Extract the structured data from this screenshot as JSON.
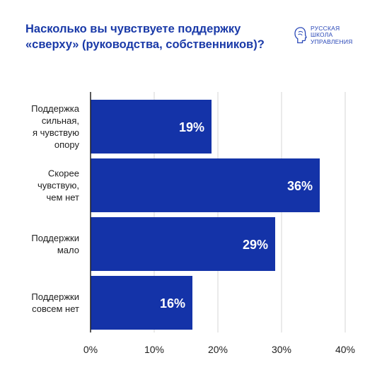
{
  "title_lines": [
    "Насколько вы чувствуете поддержку",
    "«сверху» (руководства, собственников)?"
  ],
  "logo": {
    "icon": "head-profile-logo-icon",
    "lines": [
      "РУССКАЯ",
      "ШКОЛА",
      "УПРАВЛЕНИЯ"
    ]
  },
  "colors": {
    "bar": "#1433a8",
    "title": "#1a3aa8",
    "grid": "#d6d6d6",
    "axis": "#222222",
    "label": "#1f1f1f"
  },
  "chart_data": {
    "type": "bar",
    "orientation": "horizontal",
    "categories": [
      [
        "Поддержка",
        "сильная,",
        "я чувствую",
        "опору"
      ],
      [
        "Скорее",
        "чувствую,",
        "чем нет"
      ],
      [
        "Поддержки",
        "мало"
      ],
      [
        "Поддержки",
        "совсем нет"
      ]
    ],
    "values": [
      19,
      36,
      29,
      16
    ],
    "value_labels": [
      "19%",
      "36%",
      "29%",
      "16%"
    ],
    "xlim": [
      0,
      40
    ],
    "xticks": [
      0,
      10,
      20,
      30,
      40
    ],
    "xtick_labels": [
      "0%",
      "10%",
      "20%",
      "30%",
      "40%"
    ],
    "grid": true,
    "legend": false
  }
}
